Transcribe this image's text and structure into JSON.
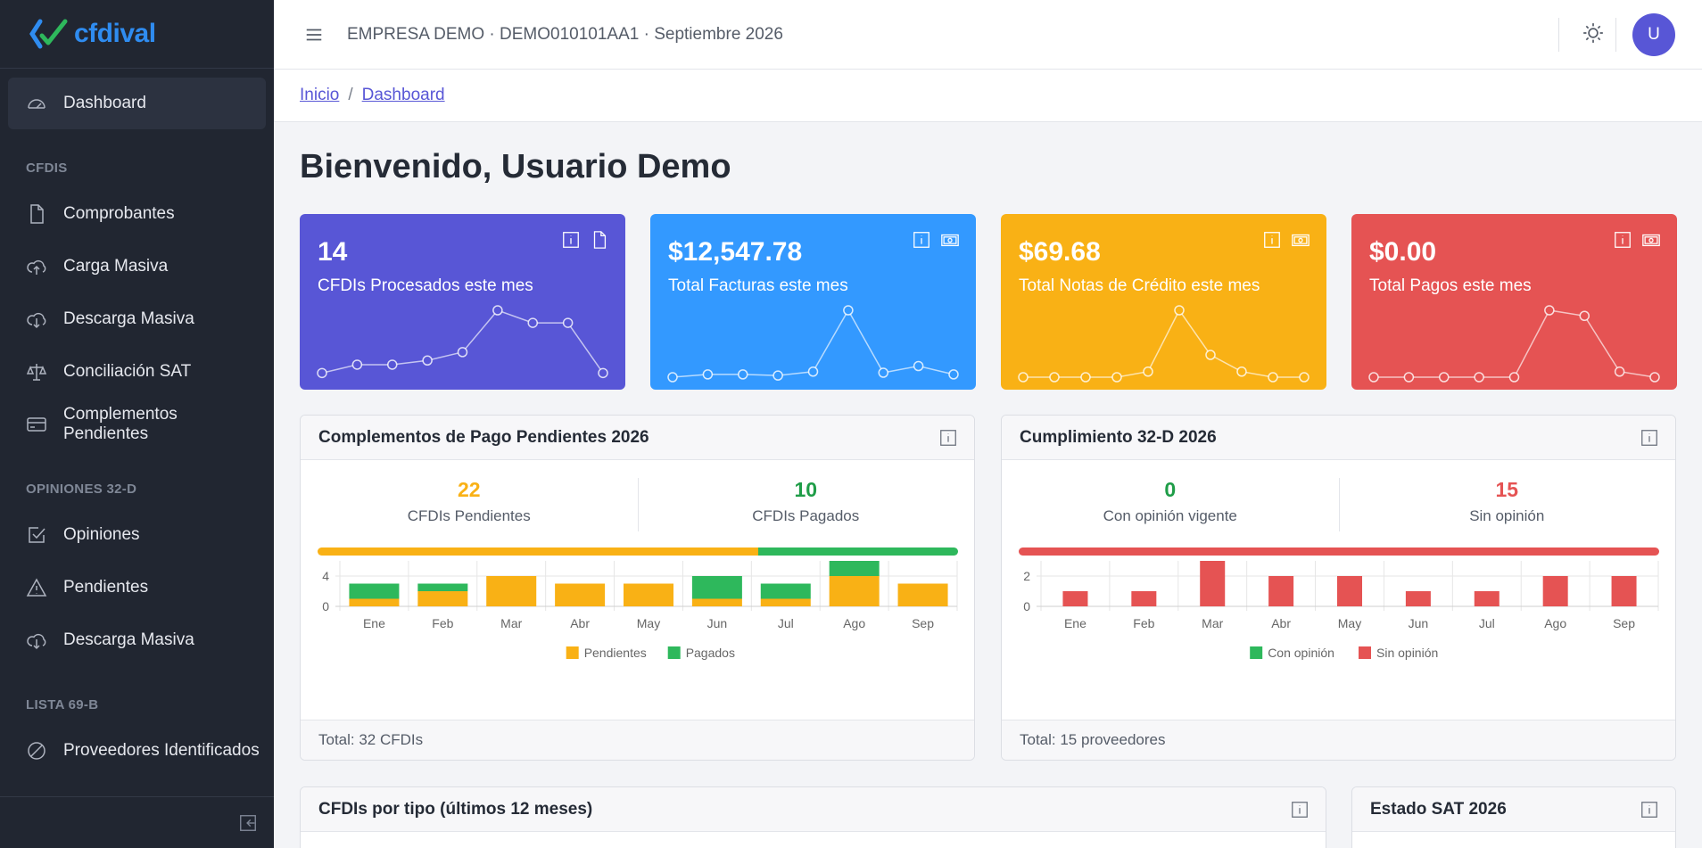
{
  "brand": {
    "name": "cfdival"
  },
  "sidebar": {
    "dashboard": "Dashboard",
    "sections": [
      {
        "title": "CFDIS",
        "items": [
          "Comprobantes",
          "Carga Masiva",
          "Descarga Masiva",
          "Conciliación SAT",
          "Complementos Pendientes"
        ]
      },
      {
        "title": "OPINIONES 32-D",
        "items": [
          "Opiniones",
          "Pendientes",
          "Descarga Masiva"
        ]
      },
      {
        "title": "LISTA 69-B",
        "items": [
          "Proveedores Identificados"
        ]
      }
    ]
  },
  "header": {
    "company": "EMPRESA DEMO · DEMO010101AA1 · Septiembre 2026",
    "avatar": "U"
  },
  "breadcrumb": {
    "home": "Inicio",
    "current": "Dashboard",
    "sep": "/"
  },
  "page_title": "Bienvenido, Usuario Demo",
  "stats": [
    {
      "value": "14",
      "label": "CFDIs Procesados este mes",
      "color": "#5856d6",
      "spark": [
        1,
        3,
        3,
        4,
        6,
        16,
        13,
        13,
        1
      ]
    },
    {
      "value": "$12,547.78",
      "label": "Total Facturas este mes",
      "color": "#3399ff",
      "spark": [
        0,
        0.5,
        0.5,
        0.3,
        1,
        12,
        0.8,
        2,
        0.5
      ]
    },
    {
      "value": "$69.68",
      "label": "Total Notas de Crédito este mes",
      "color": "#f9b115",
      "spark": [
        0,
        0,
        0,
        0,
        1,
        12,
        4,
        1,
        0,
        0
      ]
    },
    {
      "value": "$0.00",
      "label": "Total Pagos este mes",
      "color": "#e55353",
      "spark": [
        0,
        0,
        0,
        0,
        0,
        12,
        11,
        1,
        0
      ]
    }
  ],
  "complementos": {
    "title": "Complementos de Pago Pendientes 2026",
    "pend_value": "22",
    "pend_label": "CFDIs Pendientes",
    "paid_value": "10",
    "paid_label": "CFDIs Pagados",
    "progress": {
      "pendientes": 22,
      "pagados": 10
    },
    "footer": "Total: 32 CFDIs",
    "colors": {
      "pendientes": "#f9b115",
      "pagados": "#2eb85c"
    }
  },
  "cumplimiento": {
    "title": "Cumplimiento 32-D 2026",
    "con_value": "0",
    "con_label": "Con opinión vigente",
    "sin_value": "15",
    "sin_label": "Sin opinión",
    "progress": {
      "con": 0,
      "sin": 15
    },
    "footer": "Total: 15 proveedores",
    "colors": {
      "con": "#2eb85c",
      "sin": "#e55353"
    }
  },
  "bottom_panels": {
    "tipos": "CFDIs por tipo (últimos 12 meses)",
    "estado": "Estado SAT 2026"
  },
  "chart_data": [
    {
      "type": "bar",
      "stacked": true,
      "categories": [
        "Ene",
        "Feb",
        "Mar",
        "Abr",
        "May",
        "Jun",
        "Jul",
        "Ago",
        "Sep"
      ],
      "series": [
        {
          "name": "Pendientes",
          "values": [
            1,
            2,
            4,
            3,
            3,
            1,
            1,
            4,
            3
          ],
          "color": "#f9b115"
        },
        {
          "name": "Pagados",
          "values": [
            2,
            1,
            0,
            0,
            0,
            3,
            2,
            2,
            0
          ],
          "color": "#2eb85c"
        }
      ],
      "yticks": [
        0,
        4
      ],
      "ylim": [
        0,
        6
      ],
      "legend": "bottom"
    },
    {
      "type": "bar",
      "stacked": true,
      "categories": [
        "Ene",
        "Feb",
        "Mar",
        "Abr",
        "May",
        "Jun",
        "Jul",
        "Ago",
        "Sep"
      ],
      "series": [
        {
          "name": "Con opinión",
          "values": [
            0,
            0,
            0,
            0,
            0,
            0,
            0,
            0,
            0
          ],
          "color": "#2eb85c"
        },
        {
          "name": "Sin opinión",
          "values": [
            1,
            1,
            3,
            2,
            2,
            1,
            1,
            2,
            2
          ],
          "color": "#e55353"
        }
      ],
      "yticks": [
        0,
        2
      ],
      "ylim": [
        0,
        3
      ],
      "legend": "bottom"
    }
  ]
}
